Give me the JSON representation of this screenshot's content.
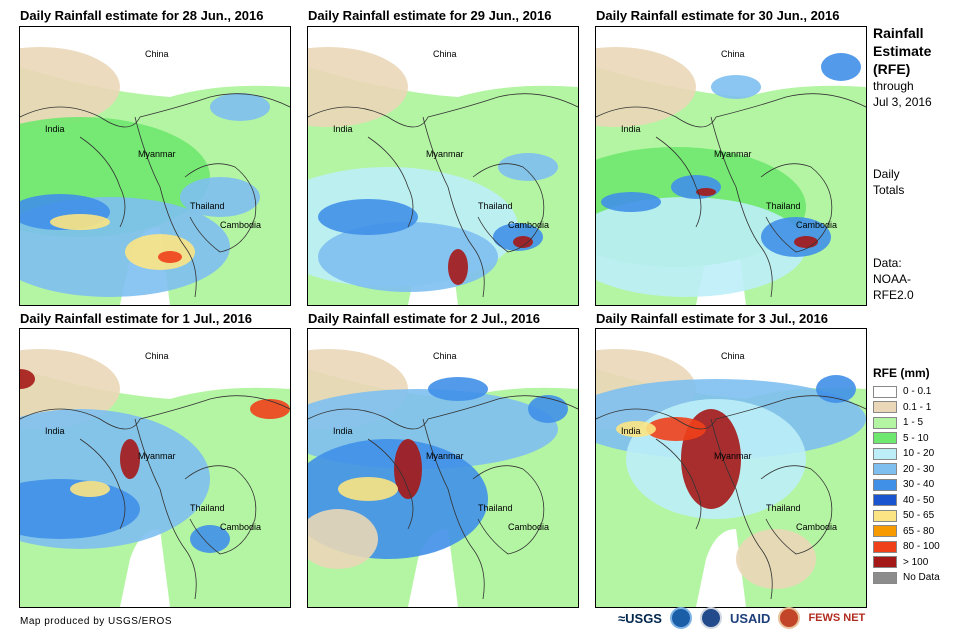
{
  "panels": [
    {
      "title": "Daily Rainfall estimate for 28 Jun., 2016"
    },
    {
      "title": "Daily Rainfall estimate for 29 Jun., 2016"
    },
    {
      "title": "Daily Rainfall estimate for 30 Jun., 2016"
    },
    {
      "title": "Daily Rainfall estimate for 1 Jul., 2016"
    },
    {
      "title": "Daily Rainfall estimate for 2 Jul., 2016"
    },
    {
      "title": "Daily Rainfall estimate for 3 Jul., 2016"
    }
  ],
  "labels": {
    "china": "China",
    "india": "India",
    "myanmar": "Myanmar",
    "thailand": "Thailand",
    "cambodia": "Cambodia"
  },
  "side": {
    "title_line1": "Rainfall",
    "title_line2": "Estimate",
    "title_line3": "(RFE)",
    "through": "through",
    "through_date": "Jul 3, 2016",
    "daily": "Daily",
    "totals": "Totals",
    "data": "Data:",
    "source1": "NOAA-",
    "source2": "RFE2.0"
  },
  "legend": {
    "title": "RFE (mm)",
    "items": [
      {
        "label": "0 - 0.1",
        "color": "#ffffff"
      },
      {
        "label": "0.1 - 1",
        "color": "#ead7b7"
      },
      {
        "label": "1 - 5",
        "color": "#b4f5a3"
      },
      {
        "label": "5 - 10",
        "color": "#6ee86e"
      },
      {
        "label": "10 - 20",
        "color": "#bdeef8"
      },
      {
        "label": "20 - 30",
        "color": "#7ebff0"
      },
      {
        "label": "30 - 40",
        "color": "#4090e8"
      },
      {
        "label": "40 - 50",
        "color": "#1a55cf"
      },
      {
        "label": "50 - 65",
        "color": "#fbe483"
      },
      {
        "label": "65 - 80",
        "color": "#f79a00"
      },
      {
        "label": "80 - 100",
        "color": "#f0401a"
      },
      {
        "label": "> 100",
        "color": "#a51818"
      },
      {
        "label": "No Data",
        "color": "#8c8c8c"
      }
    ]
  },
  "footer": {
    "credit": "Map produced by USGS/EROS",
    "usgs": "USGS",
    "usaid": "USAID",
    "fews": "FEWS NET"
  }
}
